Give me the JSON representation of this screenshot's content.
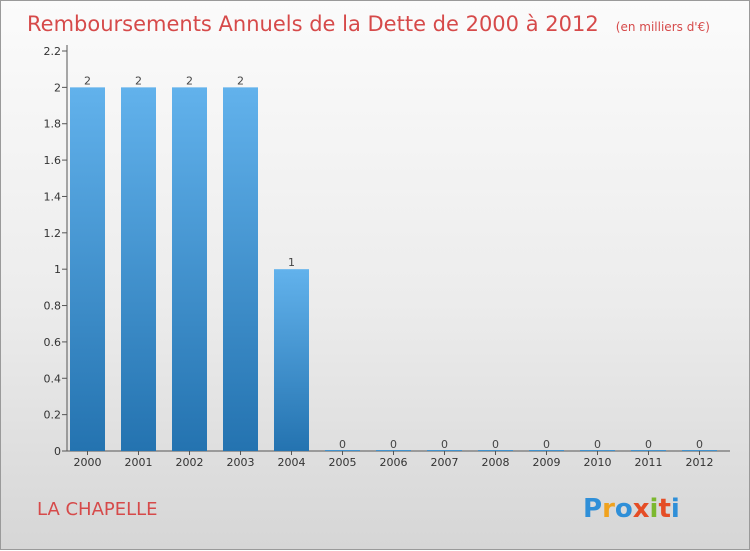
{
  "title": "Remboursements Annuels de la Dette de 2000 à 2012",
  "unit_note": "(en milliers d'€)",
  "place_label": "LA CHAPELLE",
  "brand": {
    "letters": [
      "P",
      "r",
      "o",
      "x",
      "i",
      "t",
      "i"
    ],
    "colors": [
      "#2f8fd8",
      "#f0a21e",
      "#2f8fd8",
      "#e54d26",
      "#7cb82f",
      "#e54d26",
      "#2f8fd8"
    ]
  },
  "colors": {
    "bar_top": "#62b2ec",
    "bar_bottom": "#2473b0",
    "title": "#d64a4a"
  },
  "chart_data": {
    "type": "bar",
    "title": "Remboursements Annuels de la Dette de 2000 à 2012",
    "categories": [
      "2000",
      "2001",
      "2002",
      "2003",
      "2004",
      "2005",
      "2006",
      "2007",
      "2008",
      "2009",
      "2010",
      "2011",
      "2012"
    ],
    "values": [
      2,
      2,
      2,
      2,
      1,
      0,
      0,
      0,
      0,
      0,
      0,
      0,
      0
    ],
    "data_labels": [
      "2",
      "2",
      "2",
      "2",
      "1",
      "0",
      "0",
      "0",
      "0",
      "0",
      "0",
      "0",
      "0"
    ],
    "ylim": [
      0,
      2.2
    ],
    "yticks": [
      0,
      0.2,
      0.4,
      0.6,
      0.8,
      1,
      1.2,
      1.4,
      1.6,
      1.8,
      2,
      2.2
    ],
    "ytick_labels": [
      "0",
      "0.2",
      "0.4",
      "0.6",
      "0.8",
      "1",
      "1.2",
      "1.4",
      "1.6",
      "1.8",
      "2",
      "2.2"
    ],
    "xlabel": "",
    "ylabel": "",
    "grid": false
  }
}
